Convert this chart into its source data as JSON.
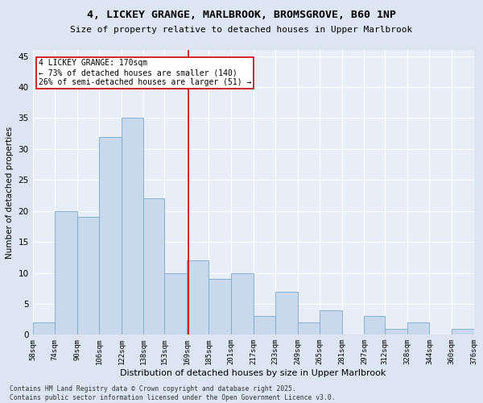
{
  "title": "4, LICKEY GRANGE, MARLBROOK, BROMSGROVE, B60 1NP",
  "subtitle": "Size of property relative to detached houses in Upper Marlbrook",
  "xlabel": "Distribution of detached houses by size in Upper Marlbrook",
  "ylabel": "Number of detached properties",
  "bins": [
    58,
    74,
    90,
    106,
    122,
    138,
    153,
    169,
    185,
    201,
    217,
    233,
    249,
    265,
    281,
    297,
    312,
    328,
    344,
    360,
    376
  ],
  "bin_labels": [
    "58sqm",
    "74sqm",
    "90sqm",
    "106sqm",
    "122sqm",
    "138sqm",
    "153sqm",
    "169sqm",
    "185sqm",
    "201sqm",
    "217sqm",
    "233sqm",
    "249sqm",
    "265sqm",
    "281sqm",
    "297sqm",
    "312sqm",
    "328sqm",
    "344sqm",
    "360sqm",
    "376sqm"
  ],
  "counts": [
    2,
    20,
    19,
    32,
    35,
    22,
    10,
    12,
    9,
    10,
    3,
    7,
    2,
    4,
    0,
    3,
    1,
    2,
    0,
    1
  ],
  "bar_color": "#c8d9ed",
  "bar_edge_color": "#7aa8cc",
  "property_size": 170,
  "annotation_line_color": "#cc0000",
  "annotation_box_color": "#ffffff",
  "annotation_text": "4 LICKEY GRANGE: 170sqm\n← 73% of detached houses are smaller (140)\n26% of semi-detached houses are larger (51) →",
  "annotation_text_size": 7.0,
  "ylim": [
    0,
    46
  ],
  "yticks": [
    0,
    5,
    10,
    15,
    20,
    25,
    30,
    35,
    40,
    45
  ],
  "footer": "Contains HM Land Registry data © Crown copyright and database right 2025.\nContains public sector information licensed under the Open Government Licence v3.0.",
  "bg_color": "#dce6f2",
  "plot_bg_color": "#e8eef7"
}
